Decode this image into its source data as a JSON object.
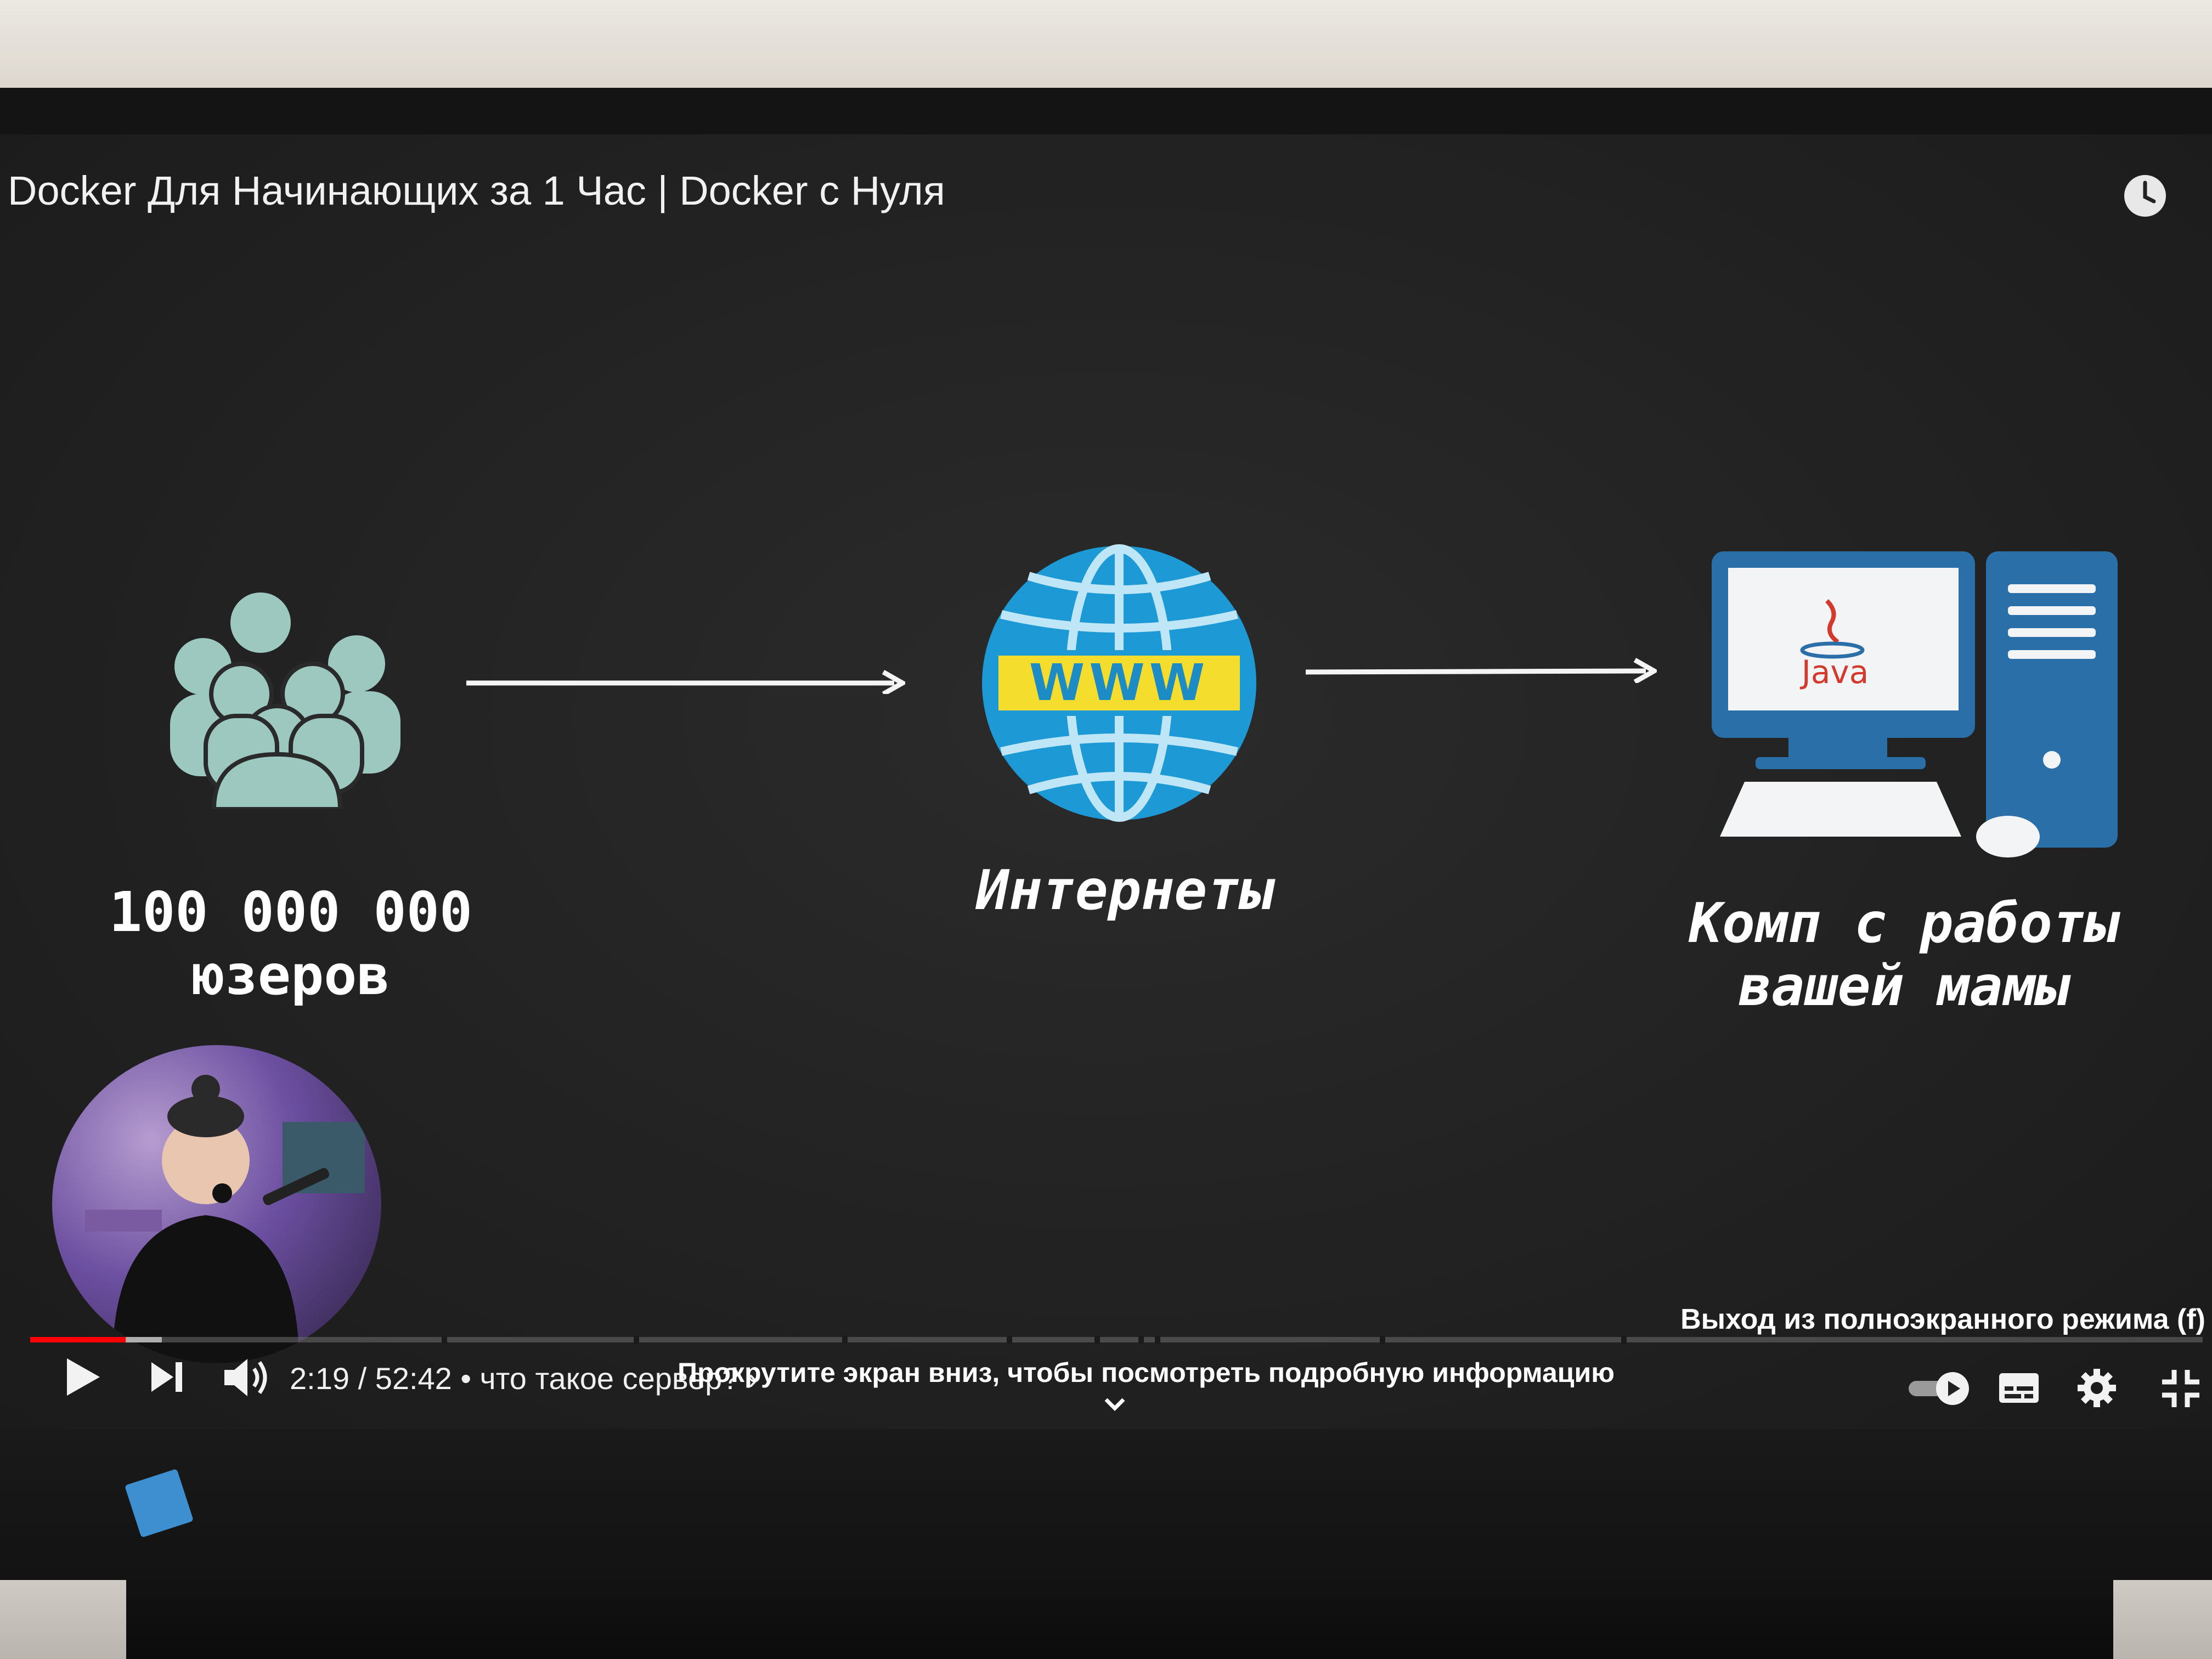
{
  "video": {
    "title": "Docker Для Начинающих за 1 Час | Docker с Нуля"
  },
  "slide": {
    "users_label_line1": "100 000 000",
    "users_label_line2": "юзеров",
    "globe_text": "WWW",
    "internet_label": "Интернеты",
    "computer_screen_text": "Java",
    "computer_label_line1": "Комп с работы",
    "computer_label_line2": "вашей мамы"
  },
  "player": {
    "time_current": "2:19",
    "time_separator": "/",
    "time_total": "52:42",
    "chapter": "• что такое сервер? ›",
    "exit_fullscreen": "Выход из полноэкранного режима (f)",
    "scroll_hint": "Прокрутите экран вниз, чтобы посмотреть подробную информацию",
    "progress_fraction": 0.044
  },
  "colors": {
    "progress_red": "#ff0000",
    "people_fill": "#9cc8c0",
    "globe_blue": "#1d9ad6",
    "globe_band": "#f5dd2e",
    "monitor_blue": "#2a6fa8"
  },
  "icons": {
    "clock": "clock-icon",
    "play": "play-icon",
    "next": "next-icon",
    "volume": "volume-icon",
    "autoplay": "autoplay-toggle-icon",
    "subtitles": "subtitles-icon",
    "settings": "gear-icon",
    "exit_fullscreen": "exit-fullscreen-icon",
    "chevron": "chevron-down-icon"
  }
}
